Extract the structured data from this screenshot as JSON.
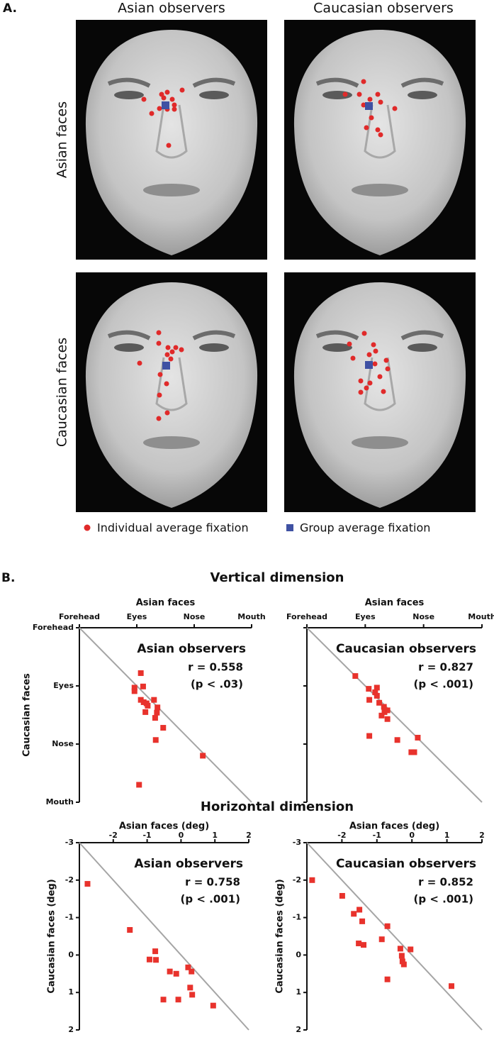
{
  "panel_a": {
    "label": "A.",
    "column_headers": [
      "Asian observers",
      "Caucasian observers"
    ],
    "row_headers": [
      "Asian faces",
      "Caucasian faces"
    ],
    "legend": [
      {
        "name": "Individual average fixation",
        "color": "#e02a2a"
      },
      {
        "name": "Group average fixation",
        "color": "#3f51a3"
      }
    ]
  },
  "panel_b": {
    "label": "B.",
    "sections": [
      "Vertical dimension",
      "Horizontal dimension"
    ]
  },
  "chart_data": [
    {
      "type": "scatter",
      "title": "Asian observers",
      "annotations": [
        "r = 0.558",
        "(p < .03)"
      ],
      "xlabel": "Asian faces",
      "ylabel": "Caucasian faces",
      "x_axis_position": "top",
      "identity_line": true,
      "xlim": [
        0,
        3
      ],
      "ylim": [
        3,
        0
      ],
      "xticks": [
        {
          "value": 0,
          "label": "Forehead"
        },
        {
          "value": 1,
          "label": "Eyes"
        },
        {
          "value": 2,
          "label": "Nose"
        },
        {
          "value": 3,
          "label": "Mouth"
        }
      ],
      "yticks": [
        {
          "value": 0,
          "label": "Forehead"
        },
        {
          "value": 1,
          "label": "Eyes"
        },
        {
          "value": 2,
          "label": "Nose"
        },
        {
          "value": 3,
          "label": "Mouth"
        }
      ],
      "color": "#e8322c",
      "x": [
        1.07,
        1.11,
        0.96,
        0.96,
        1.07,
        1.12,
        1.17,
        1.3,
        1.19,
        1.15,
        1.36,
        1.35,
        1.32,
        1.46,
        1.33,
        1.04,
        2.15
      ],
      "values": [
        0.78,
        1.01,
        1.03,
        1.09,
        1.24,
        1.28,
        1.3,
        1.24,
        1.34,
        1.45,
        1.37,
        1.46,
        1.55,
        1.72,
        1.93,
        2.7,
        2.2
      ]
    },
    {
      "type": "scatter",
      "title": "Caucasian observers",
      "annotations": [
        "r = 0.827",
        "(p < .001)"
      ],
      "xlabel": "Asian faces",
      "x_axis_position": "top",
      "identity_line": true,
      "show_ytick_labels": false,
      "xlim": [
        0,
        3
      ],
      "ylim": [
        3,
        0
      ],
      "xticks": [
        {
          "value": 0,
          "label": "Forehead"
        },
        {
          "value": 1,
          "label": "Eyes"
        },
        {
          "value": 2,
          "label": "Nose"
        },
        {
          "value": 3,
          "label": "Mouth"
        }
      ],
      "yticks": [
        0,
        1,
        2,
        3
      ],
      "color": "#e8322c",
      "x": [
        0.83,
        1.06,
        1.2,
        1.17,
        1.2,
        1.07,
        1.24,
        1.32,
        1.33,
        1.38,
        1.28,
        1.38,
        1.07,
        1.55,
        1.9,
        1.79,
        1.84
      ],
      "values": [
        0.83,
        1.05,
        1.03,
        1.11,
        1.17,
        1.24,
        1.29,
        1.36,
        1.45,
        1.42,
        1.51,
        1.57,
        1.86,
        1.93,
        1.89,
        2.14,
        2.14
      ]
    },
    {
      "type": "scatter",
      "title": "Asian observers",
      "annotations": [
        "r = 0.758",
        "(p < .001)"
      ],
      "xlabel": "Asian faces (deg)",
      "ylabel": "Caucasian faces (deg)",
      "x_axis_position": "top",
      "identity_line": true,
      "xlim": [
        -3,
        2
      ],
      "ylim": [
        2,
        -3
      ],
      "xticks": [
        -2,
        -1,
        0,
        1,
        2
      ],
      "yticks": [
        -3,
        -2,
        -1,
        0,
        1,
        2
      ],
      "color": "#e8322c",
      "x": [
        -2.76,
        -1.51,
        -0.76,
        -0.93,
        -0.74,
        -0.33,
        -0.14,
        0.21,
        0.31,
        0.27,
        0.33,
        0.95,
        -0.52,
        -0.08
      ],
      "values": [
        -1.9,
        -0.67,
        -0.1,
        0.12,
        0.13,
        0.44,
        0.5,
        0.33,
        0.44,
        0.87,
        1.06,
        1.35,
        1.19,
        1.19
      ]
    },
    {
      "type": "scatter",
      "title": "Caucasian observers",
      "annotations": [
        "r = 0.852",
        "(p < .001)"
      ],
      "xlabel": "Asian faces (deg)",
      "ylabel": "Caucasian faces (deg)",
      "x_axis_position": "top",
      "identity_line": true,
      "xlim": [
        -3,
        2
      ],
      "ylim": [
        2,
        -3
      ],
      "xticks": [
        -2,
        -1,
        0,
        1,
        2
      ],
      "yticks": [
        -3,
        -2,
        -1,
        0,
        1,
        2
      ],
      "color": "#e8322c",
      "x": [
        -2.85,
        -1.99,
        -1.66,
        -1.5,
        -1.42,
        -1.52,
        -1.38,
        -0.86,
        -0.7,
        -0.33,
        -0.29,
        -0.04,
        -0.27,
        -0.23,
        -0.7,
        1.13
      ],
      "values": [
        -2.0,
        -1.58,
        -1.1,
        -1.21,
        -0.9,
        -0.31,
        -0.27,
        -0.42,
        -0.77,
        -0.17,
        0.02,
        -0.15,
        0.17,
        0.25,
        0.65,
        0.83
      ]
    }
  ]
}
